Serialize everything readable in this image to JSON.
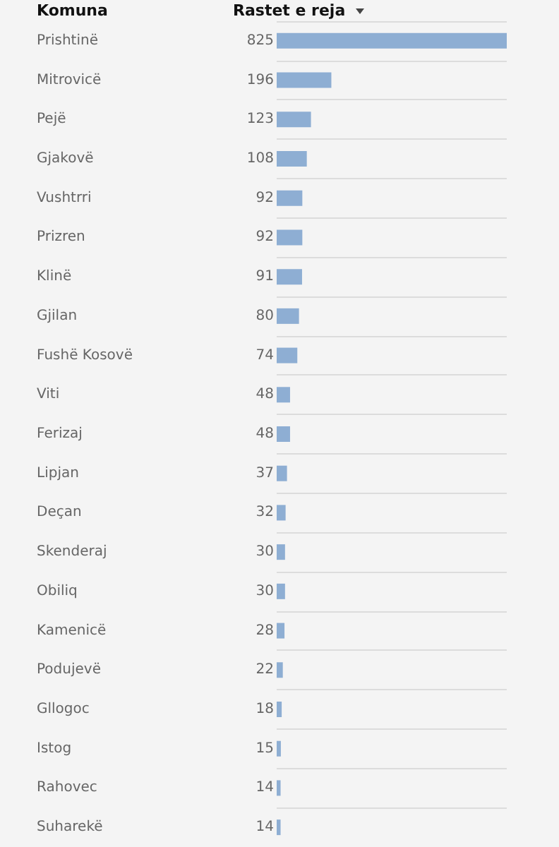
{
  "chart_data": {
    "type": "bar",
    "orientation": "horizontal",
    "ylabel": "Komuna",
    "xlabel": "Rastet e reja",
    "categories": [
      "Prishtinë",
      "Mitrovicë",
      "Pejë",
      "Gjakovë",
      "Vushtrri",
      "Prizren",
      "Klinë",
      "Gjilan",
      "Fushë Kosovë",
      "Viti",
      "Ferizaj",
      "Lipjan",
      "Deçan",
      "Skenderaj",
      "Obiliq",
      "Kamenicë",
      "Podujevë",
      "Gllogoc",
      "Istog",
      "Rahovec",
      "Suharekë"
    ],
    "values": [
      825,
      196,
      123,
      108,
      92,
      92,
      91,
      80,
      74,
      48,
      48,
      37,
      32,
      30,
      30,
      28,
      22,
      18,
      15,
      14,
      14
    ],
    "color": "#8eaed3",
    "data_labels": true,
    "grid": "y"
  }
}
